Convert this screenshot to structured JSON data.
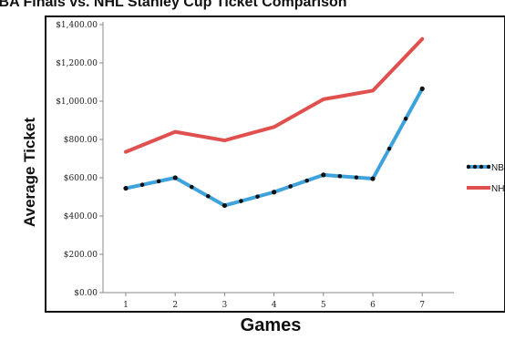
{
  "title": "NBA Finals vs. NHL Stanley Cup Ticket Comparison",
  "chart_data": {
    "type": "line",
    "xlabel": "Games",
    "ylabel": "Average Ticket",
    "categories": [
      "1",
      "2",
      "3",
      "4",
      "5",
      "6",
      "7"
    ],
    "ylim": [
      0,
      1400
    ],
    "yticks": [
      "$0.00",
      "$200.00",
      "$400.00",
      "$600.00",
      "$800.00",
      "$1,000.00",
      "$1,200.00",
      "$1,400.00"
    ],
    "series": [
      {
        "name": "NBA",
        "values": [
          545,
          600,
          455,
          525,
          615,
          595,
          1065
        ],
        "color": "#3ea3dc",
        "marker_color": "#111111"
      },
      {
        "name": "NHL",
        "values": [
          735,
          840,
          795,
          865,
          1010,
          1055,
          1325
        ],
        "color": "#e0504f"
      }
    ],
    "legend_position": "right",
    "grid": false
  }
}
